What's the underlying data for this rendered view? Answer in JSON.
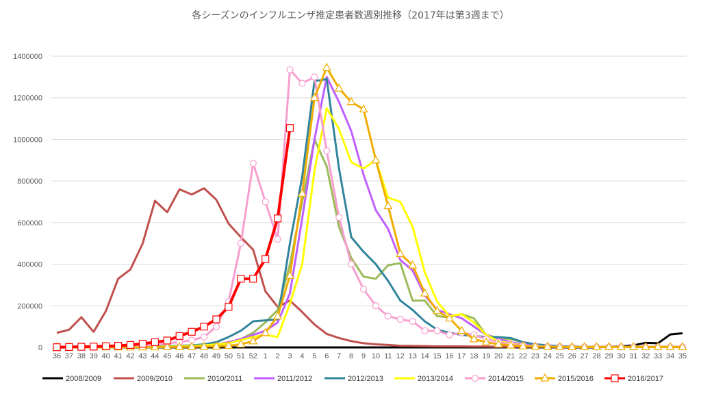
{
  "chart_data": {
    "type": "line",
    "title": "各シーズンのインフルエンザ推定患者数週別推移（2017年は第3週まで）",
    "xlabel": "",
    "ylabel": "",
    "ylim": [
      0,
      1400000
    ],
    "yticks": [
      0,
      200000,
      400000,
      600000,
      800000,
      1000000,
      1200000,
      1400000
    ],
    "grid": "horizontal",
    "legend": "bottom",
    "categories": [
      "36",
      "37",
      "38",
      "39",
      "40",
      "41",
      "42",
      "43",
      "44",
      "45",
      "46",
      "47",
      "48",
      "49",
      "50",
      "51",
      "52",
      "1",
      "2",
      "3",
      "4",
      "5",
      "6",
      "7",
      "8",
      "9",
      "10",
      "11",
      "12",
      "13",
      "14",
      "15",
      "16",
      "17",
      "18",
      "19",
      "20",
      "21",
      "22",
      "23",
      "24",
      "25",
      "26",
      "27",
      "28",
      "29",
      "30",
      "31",
      "32",
      "33",
      "34",
      "35"
    ],
    "series": [
      {
        "name": "2008/2009",
        "color": "#000000",
        "marker": "none",
        "values": [
          0,
          0,
          0,
          0,
          0,
          0,
          0,
          0,
          0,
          0,
          0,
          0,
          0,
          0,
          0,
          0,
          0,
          0,
          0,
          0,
          0,
          0,
          0,
          0,
          0,
          0,
          0,
          0,
          0,
          0,
          0,
          0,
          0,
          0,
          0,
          0,
          0,
          0,
          0,
          0,
          0,
          0,
          0,
          0,
          0,
          3000,
          5000,
          10000,
          22000,
          20000,
          62000,
          68000
        ]
      },
      {
        "name": "2009/2010",
        "color": "#C0504D",
        "marker": "none",
        "values": [
          70000,
          85000,
          145000,
          75000,
          175000,
          330000,
          375000,
          500000,
          705000,
          650000,
          760000,
          735000,
          765000,
          710000,
          595000,
          530000,
          470000,
          270000,
          195000,
          225000,
          170000,
          110000,
          65000,
          45000,
          30000,
          20000,
          15000,
          12000,
          8000,
          7000,
          6000,
          5000,
          5000,
          5000,
          4000,
          4000,
          3000,
          3000,
          3000,
          3000,
          3000,
          3000,
          3000,
          3000,
          3000,
          3000,
          3000,
          3000,
          3000,
          3000,
          3000,
          3000
        ]
      },
      {
        "name": "2010/2011",
        "color": "#9BBB59",
        "marker": "none",
        "values": [
          2000,
          2000,
          2000,
          2000,
          2000,
          2000,
          3000,
          3000,
          3000,
          4000,
          5000,
          6000,
          8000,
          12000,
          20000,
          40000,
          70000,
          120000,
          180000,
          400000,
          700000,
          1000000,
          870000,
          580000,
          430000,
          340000,
          330000,
          395000,
          405000,
          225000,
          225000,
          150000,
          145000,
          160000,
          140000,
          60000,
          45000,
          40000,
          25000,
          15000,
          10000,
          5000,
          4000,
          3000,
          2000,
          2000,
          2000,
          2000,
          2000,
          2000,
          2000,
          2000
        ]
      },
      {
        "name": "2011/2012",
        "color": "#BF5FFF",
        "marker": "none",
        "values": [
          1000,
          1000,
          1000,
          1000,
          2000,
          2000,
          3000,
          3000,
          4000,
          5000,
          6000,
          8000,
          10000,
          15000,
          25000,
          40000,
          60000,
          80000,
          120000,
          260000,
          620000,
          1000000,
          1300000,
          1180000,
          1040000,
          830000,
          660000,
          570000,
          420000,
          370000,
          250000,
          180000,
          160000,
          140000,
          100000,
          60000,
          40000,
          25000,
          15000,
          10000,
          6000,
          4000,
          3000,
          2000,
          2000,
          2000,
          2000,
          2000,
          2000,
          2000,
          2000,
          2000
        ]
      },
      {
        "name": "2012/2013",
        "color": "#31849B",
        "marker": "none",
        "values": [
          1000,
          1000,
          1000,
          1000,
          2000,
          2000,
          3000,
          4000,
          5000,
          6000,
          8000,
          10000,
          15000,
          25000,
          50000,
          80000,
          125000,
          130000,
          135000,
          500000,
          820000,
          1280000,
          1290000,
          860000,
          530000,
          460000,
          400000,
          320000,
          225000,
          180000,
          125000,
          85000,
          70000,
          60000,
          55000,
          50000,
          50000,
          45000,
          25000,
          15000,
          10000,
          6000,
          4000,
          3000,
          2000,
          2000,
          2000,
          2000,
          2000,
          2000,
          2000,
          2000
        ]
      },
      {
        "name": "2013/2014",
        "color": "#FFFF00",
        "marker": "none",
        "values": [
          1000,
          1000,
          1000,
          1000,
          1000,
          1000,
          2000,
          2000,
          3000,
          4000,
          5000,
          7000,
          10000,
          15000,
          20000,
          35000,
          50000,
          60000,
          50000,
          210000,
          400000,
          850000,
          1150000,
          1050000,
          890000,
          860000,
          900000,
          720000,
          700000,
          580000,
          360000,
          220000,
          150000,
          160000,
          120000,
          60000,
          30000,
          20000,
          10000,
          6000,
          4000,
          3000,
          2000,
          2000,
          2000,
          2000,
          2000,
          2000,
          2000,
          2000,
          2000,
          2000
        ]
      },
      {
        "name": "2014/2015",
        "color": "#F79ECF",
        "marker": "circle",
        "values": [
          1000,
          1000,
          1000,
          1000,
          2000,
          3000,
          5000,
          8000,
          12000,
          20000,
          25000,
          35000,
          50000,
          100000,
          220000,
          500000,
          885000,
          700000,
          520000,
          1335000,
          1270000,
          1300000,
          945000,
          625000,
          400000,
          280000,
          200000,
          150000,
          135000,
          125000,
          80000,
          80000,
          60000,
          70000,
          60000,
          40000,
          25000,
          15000,
          10000,
          6000,
          4000,
          3000,
          2000,
          2000,
          2000,
          2000,
          2000,
          2000,
          2000,
          2000,
          2000,
          2000
        ]
      },
      {
        "name": "2015/2016",
        "color": "#F0AD00",
        "marker": "triangle",
        "values": [
          1000,
          1000,
          1000,
          1000,
          1000,
          1000,
          1000,
          1000,
          1000,
          2000,
          2000,
          3000,
          4000,
          5000,
          8000,
          15000,
          30000,
          70000,
          150000,
          345000,
          740000,
          1200000,
          1345000,
          1245000,
          1180000,
          1145000,
          900000,
          680000,
          450000,
          395000,
          260000,
          175000,
          140000,
          80000,
          40000,
          25000,
          15000,
          10000,
          6000,
          4000,
          3000,
          2000,
          2000,
          2000,
          2000,
          2000,
          2000,
          2000,
          2000,
          2000,
          2000,
          2000
        ]
      },
      {
        "name": "2016/2017",
        "color": "#FF0000",
        "marker": "square",
        "values": [
          1000,
          2000,
          3000,
          4000,
          6000,
          8000,
          12000,
          18000,
          25000,
          33000,
          55000,
          75000,
          100000,
          135000,
          195000,
          330000,
          330000,
          425000,
          620000,
          1055000,
          null,
          null,
          null,
          null,
          null,
          null,
          null,
          null,
          null,
          null,
          null,
          null,
          null,
          null,
          null,
          null,
          null,
          null,
          null,
          null,
          null,
          null,
          null,
          null,
          null,
          null,
          null,
          null,
          null,
          null,
          null,
          null
        ]
      }
    ]
  }
}
